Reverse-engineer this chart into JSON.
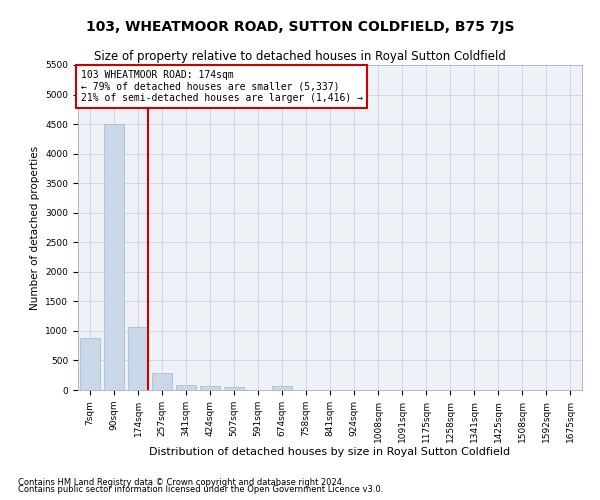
{
  "title": "103, WHEATMOOR ROAD, SUTTON COLDFIELD, B75 7JS",
  "subtitle": "Size of property relative to detached houses in Royal Sutton Coldfield",
  "xlabel": "Distribution of detached houses by size in Royal Sutton Coldfield",
  "ylabel": "Number of detached properties",
  "footnote1": "Contains HM Land Registry data © Crown copyright and database right 2024.",
  "footnote2": "Contains public sector information licensed under the Open Government Licence v3.0.",
  "annotation_line1": "103 WHEATMOOR ROAD: 174sqm",
  "annotation_line2": "← 79% of detached houses are smaller (5,337)",
  "annotation_line3": "21% of semi-detached houses are larger (1,416) →",
  "bar_color": "#c8d8e8",
  "bar_edge_color": "#a0b8cc",
  "vline_color": "#cc0000",
  "annotation_box_color": "#cc0000",
  "bg_color": "#eef2f7",
  "grid_color": "#d0d8e4",
  "categories": [
    "7sqm",
    "90sqm",
    "174sqm",
    "257sqm",
    "341sqm",
    "424sqm",
    "507sqm",
    "591sqm",
    "674sqm",
    "758sqm",
    "841sqm",
    "924sqm",
    "1008sqm",
    "1091sqm",
    "1175sqm",
    "1258sqm",
    "1341sqm",
    "1425sqm",
    "1508sqm",
    "1592sqm",
    "1675sqm"
  ],
  "values": [
    880,
    4500,
    1060,
    280,
    90,
    70,
    50,
    0,
    60,
    0,
    0,
    0,
    0,
    0,
    0,
    0,
    0,
    0,
    0,
    0,
    0
  ],
  "ylim": [
    0,
    5500
  ],
  "yticks": [
    0,
    500,
    1000,
    1500,
    2000,
    2500,
    3000,
    3500,
    4000,
    4500,
    5000,
    5500
  ],
  "title_fontsize": 10,
  "subtitle_fontsize": 8.5,
  "xlabel_fontsize": 8,
  "ylabel_fontsize": 7.5,
  "tick_fontsize": 6.5,
  "annotation_fontsize": 7,
  "footnote_fontsize": 6
}
